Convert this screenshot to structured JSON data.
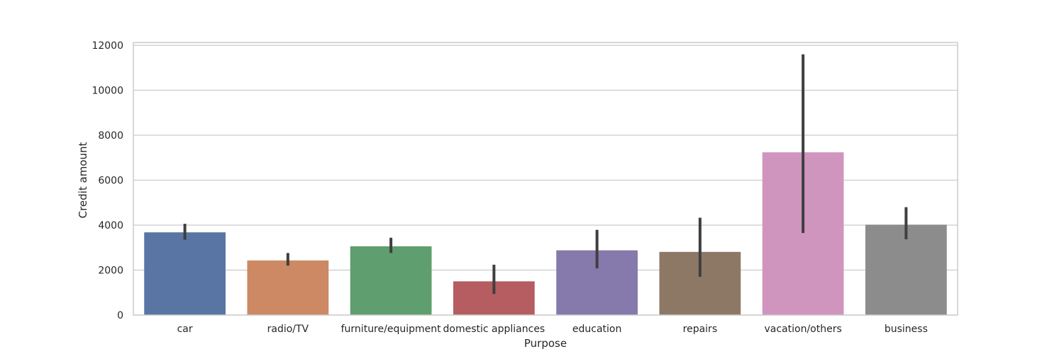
{
  "chart_data": {
    "type": "bar",
    "xlabel": "Purpose",
    "ylabel": "Credit amount",
    "ylim": [
      0,
      12000
    ],
    "yticks": [
      0,
      2000,
      4000,
      6000,
      8000,
      10000,
      12000
    ],
    "grid": true,
    "categories": [
      "car",
      "radio/TV",
      "furniture/equipment",
      "domestic appliances",
      "education",
      "repairs",
      "vacation/others",
      "business"
    ],
    "values": [
      3680,
      2430,
      3060,
      1500,
      2880,
      2810,
      7240,
      4020
    ],
    "ci_low": [
      3350,
      2200,
      2760,
      940,
      2080,
      1700,
      3650,
      3370
    ],
    "ci_high": [
      4060,
      2760,
      3440,
      2240,
      3790,
      4330,
      11600,
      4800
    ],
    "colors": [
      "#5875a4",
      "#cc8963",
      "#5f9e6e",
      "#b55d60",
      "#857aab",
      "#8d7866",
      "#d095bf",
      "#8c8c8c"
    ],
    "errorbar_color": "#3f3f3f"
  }
}
